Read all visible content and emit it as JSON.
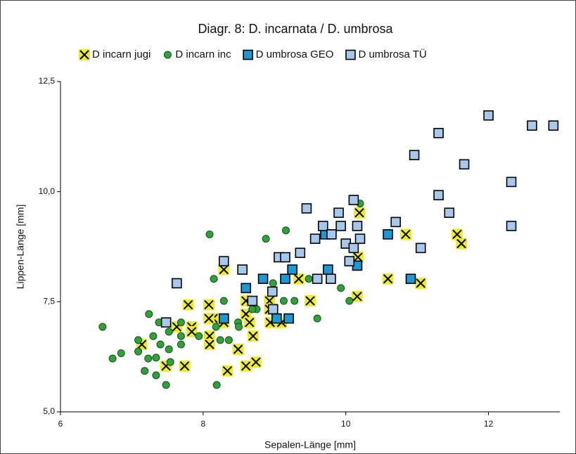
{
  "chart_data": {
    "type": "scatter",
    "title": "Diagr. 8: D. incarnata / D. umbrosa",
    "x_label": "Sepalen-Länge [mm]",
    "y_label": "Lippen-Länge [mm]",
    "xlim": [
      6,
      13
    ],
    "xticks": [
      6,
      8,
      10,
      12
    ],
    "ylim": [
      5,
      12.5
    ],
    "yticks": [
      {
        "value": 5,
        "label": "5,0"
      },
      {
        "value": 7.5,
        "label": "7,5"
      },
      {
        "value": 10,
        "label": "10,0"
      },
      {
        "value": 12.5,
        "label": "12,5"
      }
    ],
    "series": [
      {
        "name": "D incarn jugi",
        "color": "#ecec2a",
        "marker": "cross",
        "x": [
          10.84,
          10.19,
          11.56,
          11.62,
          10.17,
          10.59,
          11.05,
          9.34,
          8.29,
          10.16,
          9.5,
          8.93,
          8.6,
          7.79,
          8.08,
          8.14,
          8.29,
          8.6,
          8.93,
          8.65,
          9.1,
          8.94,
          8.08,
          8.09,
          8.09,
          8.7,
          7.84,
          7.84,
          7.63,
          7.14,
          8.49,
          7.48,
          7.74,
          8.6,
          8.74,
          8.34
        ],
        "y": [
          9.03,
          9.52,
          9.03,
          8.82,
          8.51,
          8.02,
          7.92,
          8.02,
          8.23,
          7.62,
          7.52,
          7.52,
          7.52,
          7.43,
          7.43,
          7.12,
          7.03,
          7.22,
          7.33,
          7.03,
          7.03,
          7.03,
          7.12,
          6.72,
          6.53,
          6.72,
          6.93,
          6.82,
          6.93,
          6.53,
          6.42,
          6.04,
          6.04,
          6.04,
          6.13,
          5.93
        ]
      },
      {
        "name": "D incarn inc",
        "color": "#30a23a",
        "marker": "circle",
        "x": [
          6.59,
          6.73,
          6.85,
          7.09,
          7.24,
          7.23,
          7.3,
          7.18,
          7.34,
          7.48,
          7.54,
          7.4,
          7.69,
          7.69,
          7.38,
          8.09,
          8.88,
          9.16,
          8.15,
          8.98,
          8.29,
          8.18,
          8.75,
          9.93,
          10.05,
          9.48,
          9.28,
          9.13,
          9.6,
          8.19,
          8.24,
          8.36,
          10.2,
          7.52,
          7.69,
          7.94,
          8.49,
          8.69,
          8.5,
          7.34,
          7.09,
          7.52
        ],
        "y": [
          6.93,
          6.21,
          6.33,
          6.63,
          7.22,
          6.21,
          6.72,
          5.93,
          5.83,
          5.61,
          6.13,
          6.53,
          6.72,
          6.53,
          7.03,
          9.03,
          8.93,
          9.12,
          8.02,
          7.92,
          7.52,
          6.93,
          7.33,
          7.81,
          7.52,
          8.02,
          7.52,
          7.52,
          7.12,
          5.61,
          6.63,
          6.63,
          9.73,
          6.82,
          7.03,
          6.72,
          7.03,
          7.33,
          6.93,
          6.23,
          6.37,
          6.42
        ]
      },
      {
        "name": "D umbrosa GEO",
        "color": "#1b98d6",
        "marker": "square",
        "x": [
          10.59,
          9.71,
          9.25,
          10.16,
          9.75,
          8.84,
          9.15,
          10.91,
          8.6,
          9.03,
          9.2,
          8.29
        ],
        "y": [
          9.03,
          9.03,
          8.23,
          8.32,
          8.23,
          8.02,
          8.02,
          8.02,
          7.81,
          7.12,
          7.12,
          7.12
        ]
      },
      {
        "name": "D umbrosa TÜ",
        "color": "#a6c8ec",
        "marker": "square",
        "x": [
          12.0,
          12.61,
          12.91,
          11.3,
          10.96,
          11.66,
          12.32,
          11.3,
          10.11,
          11.45,
          9.45,
          9.9,
          10.7,
          10.16,
          9.68,
          9.93,
          12.32,
          9.57,
          9.8,
          11.05,
          10.2,
          10.0,
          10.11,
          9.06,
          9.15,
          9.36,
          8.29,
          10.05,
          8.55,
          7.63,
          9.6,
          9.79,
          8.97,
          8.69,
          8.98,
          7.48
        ],
        "y": [
          11.73,
          11.5,
          11.5,
          11.33,
          10.83,
          10.62,
          10.22,
          9.92,
          9.81,
          9.52,
          9.62,
          9.52,
          9.31,
          9.22,
          9.22,
          9.22,
          9.22,
          8.93,
          9.03,
          8.72,
          8.93,
          8.82,
          8.72,
          8.51,
          8.51,
          8.61,
          8.42,
          8.42,
          8.23,
          7.92,
          8.02,
          8.02,
          7.73,
          7.52,
          7.33,
          7.03
        ]
      }
    ]
  }
}
